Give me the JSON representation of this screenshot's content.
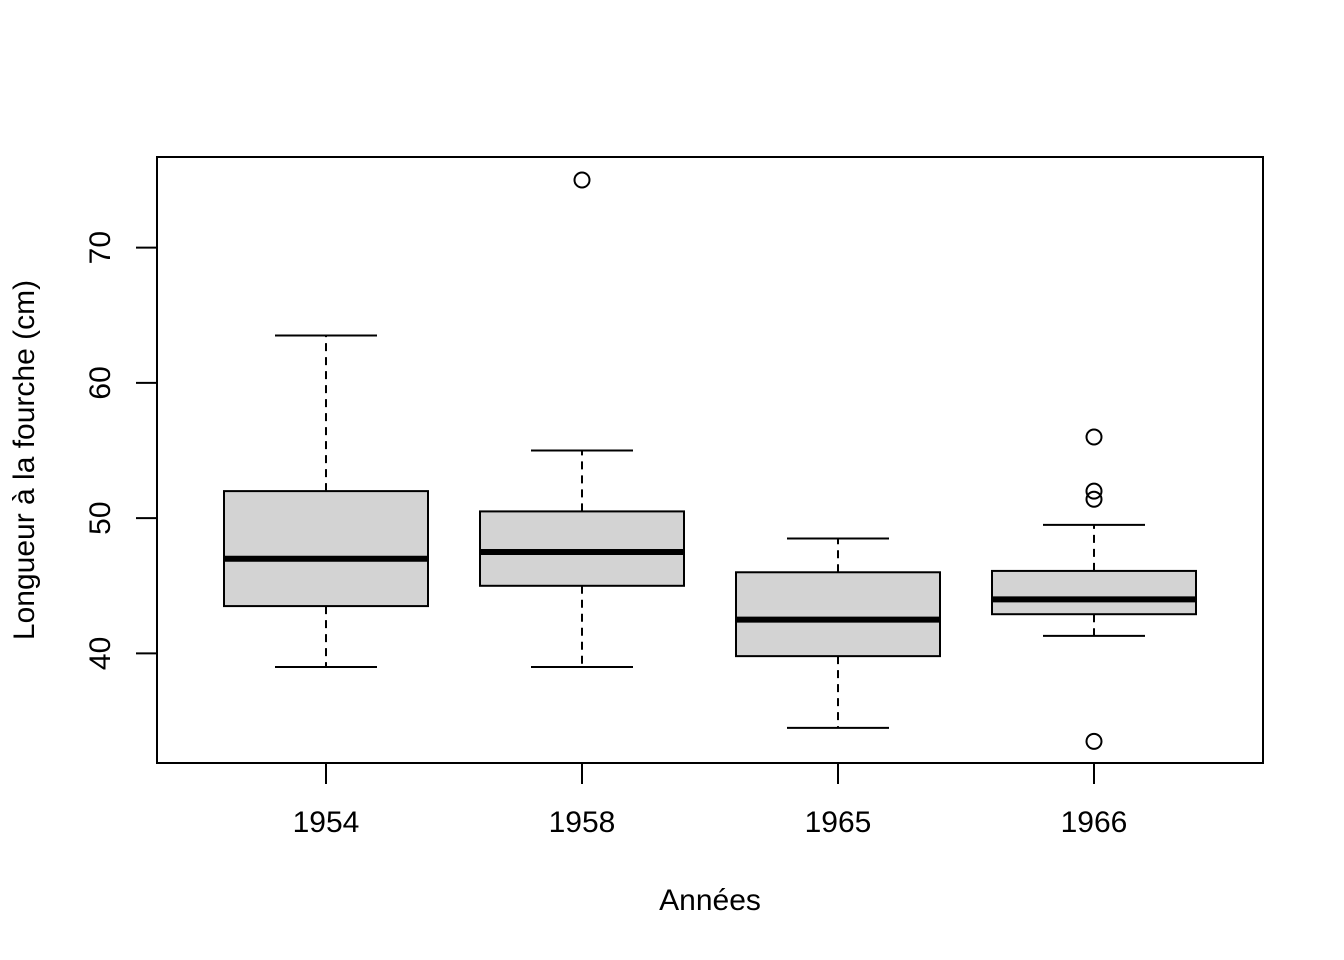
{
  "chart_data": {
    "type": "boxplot",
    "title": "",
    "xlabel": "Années",
    "ylabel": "Longueur à la fourche (cm)",
    "categories": [
      "1954",
      "1958",
      "1965",
      "1966"
    ],
    "ylim": [
      31.9,
      76.7
    ],
    "yticks": [
      40,
      50,
      60,
      70
    ],
    "grid": false,
    "legend": "none",
    "box_fill": "#d3d3d3",
    "line_color": "#000000",
    "boxes": [
      {
        "category": "1954",
        "whisker_low": 39,
        "q1": 43.5,
        "median": 47,
        "q3": 52,
        "whisker_high": 63.5,
        "outliers": []
      },
      {
        "category": "1958",
        "whisker_low": 39,
        "q1": 45,
        "median": 47.5,
        "q3": 50.5,
        "whisker_high": 55,
        "outliers": [
          75
        ]
      },
      {
        "category": "1965",
        "whisker_low": 34.5,
        "q1": 39.8,
        "median": 42.5,
        "q3": 46,
        "whisker_high": 48.5,
        "outliers": []
      },
      {
        "category": "1966",
        "whisker_low": 41.3,
        "q1": 42.9,
        "median": 44,
        "q3": 46.1,
        "whisker_high": 49.5,
        "outliers": [
          33.5,
          51.4,
          52,
          56
        ]
      }
    ]
  }
}
